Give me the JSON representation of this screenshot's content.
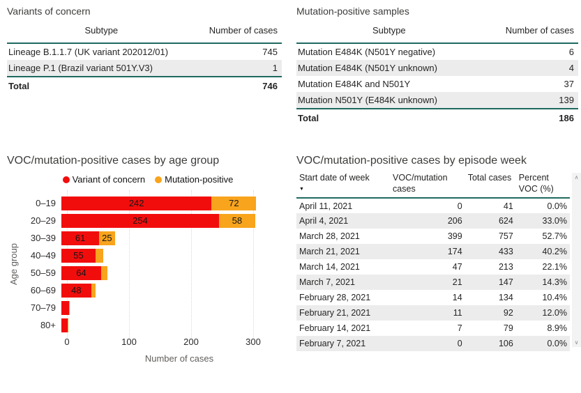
{
  "colors": {
    "accent_teal": "#1E695F",
    "voc_red": "#F20D0D",
    "mutation_orange": "#F8A41D",
    "row_stripe": "#ECECEC"
  },
  "icons": {
    "sort_desc": "▼",
    "scroll_up": "∧",
    "scroll_down": "∨"
  },
  "chart_data": [
    {
      "type": "table",
      "title": "Variants of concern",
      "columns": [
        "Subtype",
        "Number of cases"
      ],
      "rows": [
        [
          "Lineage B.1.1.7 (UK variant 202012/01)",
          "745"
        ],
        [
          "Lineage P.1 (Brazil variant 501Y.V3)",
          "1"
        ]
      ],
      "total": [
        "Total",
        "746"
      ]
    },
    {
      "type": "table",
      "title": "Mutation-positive samples",
      "columns": [
        "Subtype",
        "Number of cases"
      ],
      "rows": [
        [
          "Mutation E484K (N501Y negative)",
          "6"
        ],
        [
          "Mutation E484K (N501Y unknown)",
          "4"
        ],
        [
          "Mutation E484K and N501Y",
          "37"
        ],
        [
          "Mutation N501Y (E484K unknown)",
          "139"
        ]
      ],
      "total": [
        "Total",
        "186"
      ]
    },
    {
      "type": "bar",
      "orientation": "horizontal",
      "stacked": true,
      "title": "VOC/mutation-positive cases by age group",
      "categories": [
        "0–19",
        "20–29",
        "30–39",
        "40–49",
        "50–59",
        "60–69",
        "70–79",
        "80+"
      ],
      "series": [
        {
          "name": "Variant of concern",
          "color": "#F20D0D",
          "values": [
            242,
            254,
            61,
            55,
            64,
            48,
            12,
            10
          ]
        },
        {
          "name": "Mutation-positive",
          "color": "#F8A41D",
          "values": [
            72,
            58,
            25,
            12,
            10,
            7,
            1,
            1
          ]
        }
      ],
      "xlabel": "Number of cases",
      "ylabel": "Age group",
      "xticks": [
        0,
        100,
        200,
        300
      ],
      "xlim": [
        0,
        360
      ],
      "legend_position": "top",
      "grid": "vertical-dotted"
    },
    {
      "type": "table",
      "title": "VOC/mutation-positive cases by episode week",
      "columns": [
        "Start date of week",
        "VOC/mutation cases",
        "Total cases",
        "Percent VOC (%)"
      ],
      "sort": {
        "column": "Start date of week",
        "direction": "descending"
      },
      "rows": [
        [
          "April 11, 2021",
          "0",
          "41",
          "0.0%"
        ],
        [
          "April 4, 2021",
          "206",
          "624",
          "33.0%"
        ],
        [
          "March 28, 2021",
          "399",
          "757",
          "52.7%"
        ],
        [
          "March 21, 2021",
          "174",
          "433",
          "40.2%"
        ],
        [
          "March 14, 2021",
          "47",
          "213",
          "22.1%"
        ],
        [
          "March 7, 2021",
          "21",
          "147",
          "14.3%"
        ],
        [
          "February 28, 2021",
          "14",
          "134",
          "10.4%"
        ],
        [
          "February 21, 2021",
          "11",
          "92",
          "12.0%"
        ],
        [
          "February 14, 2021",
          "7",
          "79",
          "8.9%"
        ],
        [
          "February 7, 2021",
          "0",
          "106",
          "0.0%"
        ]
      ]
    }
  ]
}
